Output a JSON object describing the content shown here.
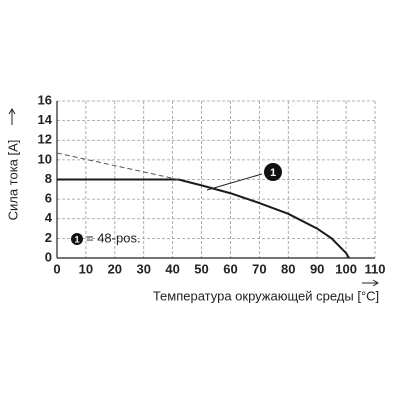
{
  "chart_data": {
    "type": "line",
    "x_label": "Температура окружающей среды [°C]",
    "y_label": "Сила тока [A]",
    "xlim": [
      0,
      110
    ],
    "xticks": [
      0,
      10,
      20,
      30,
      40,
      50,
      60,
      70,
      80,
      90,
      100,
      110
    ],
    "ylim": [
      0,
      16
    ],
    "yticks": [
      0,
      2,
      4,
      6,
      8,
      10,
      12,
      14,
      16
    ],
    "grid": true,
    "series": [
      {
        "x": [
          0,
          42,
          50,
          60,
          70,
          80,
          90,
          95,
          100,
          101
        ],
        "values": [
          8,
          8,
          7.4,
          6.6,
          5.6,
          4.5,
          3.0,
          2.0,
          0.5,
          0
        ],
        "color": "#1a1a1a",
        "dash": false
      },
      {
        "x": [
          0,
          42
        ],
        "values": [
          10.7,
          8
        ],
        "color": "#555555",
        "dash": true
      }
    ],
    "annotation": {
      "marker": "1",
      "legend_text": "= 48-pos."
    }
  }
}
